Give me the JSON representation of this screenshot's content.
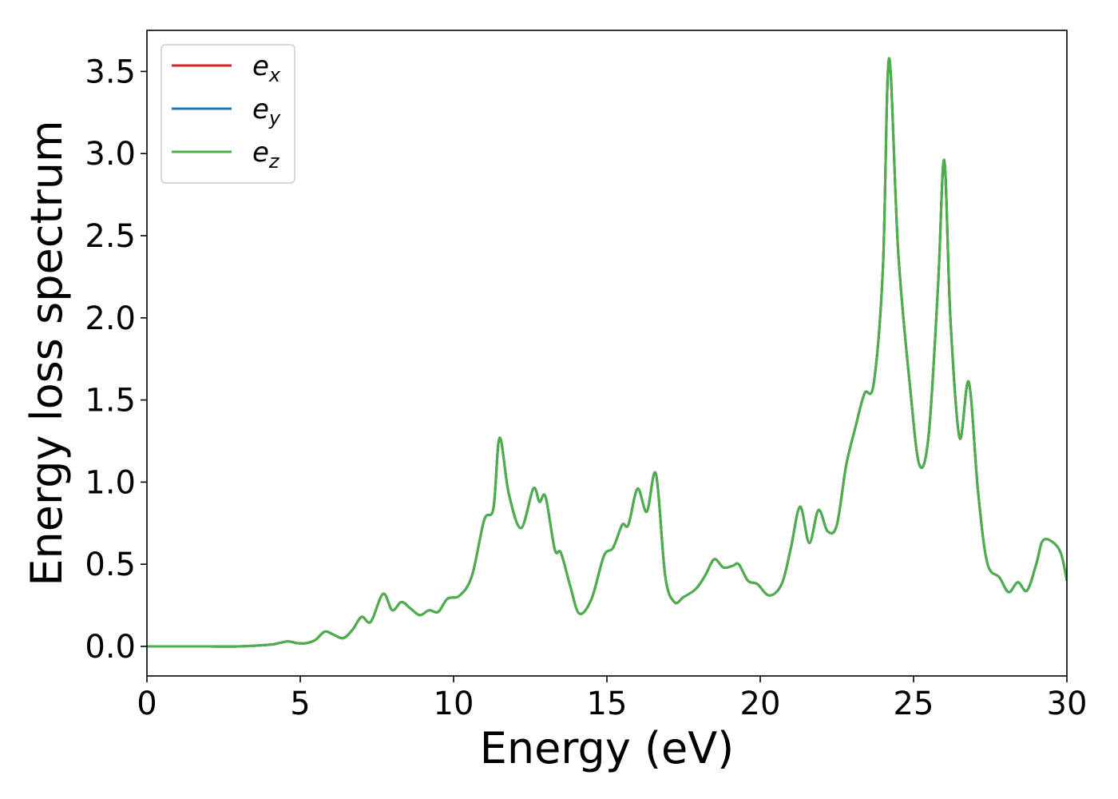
{
  "chart_data": {
    "type": "line",
    "xlabel": "Energy (eV)",
    "ylabel": "Energy loss spectrum",
    "xlim": [
      0,
      30
    ],
    "ylim": [
      -0.18,
      3.75
    ],
    "xticks": [
      0,
      5,
      10,
      15,
      20,
      25,
      30
    ],
    "xtick_labels": [
      "0",
      "5",
      "10",
      "15",
      "20",
      "25",
      "30"
    ],
    "yticks": [
      0.0,
      0.5,
      1.0,
      1.5,
      2.0,
      2.5,
      3.0,
      3.5
    ],
    "ytick_labels": [
      "0.0",
      "0.5",
      "1.0",
      "1.5",
      "2.0",
      "2.5",
      "3.0",
      "3.5"
    ],
    "grid": false,
    "legend_position": "top-left",
    "legend": [
      {
        "base": "e",
        "sub": "x",
        "color": "#d62728"
      },
      {
        "base": "e",
        "sub": "y",
        "color": "#1f77b4"
      },
      {
        "base": "e",
        "sub": "z",
        "color": "#4daf4a"
      }
    ],
    "x": [
      0,
      1,
      2,
      3,
      4,
      4.3,
      4.6,
      4.9,
      5.2,
      5.5,
      5.8,
      6.1,
      6.4,
      6.7,
      7.0,
      7.3,
      7.7,
      8.0,
      8.3,
      8.6,
      8.9,
      9.2,
      9.5,
      9.8,
      10.2,
      10.6,
      11.0,
      11.3,
      11.5,
      11.8,
      12.2,
      12.6,
      12.8,
      13.0,
      13.3,
      13.5,
      13.8,
      14.1,
      14.5,
      14.9,
      15.2,
      15.5,
      15.7,
      16.0,
      16.3,
      16.6,
      16.9,
      17.2,
      17.5,
      17.9,
      18.2,
      18.5,
      18.8,
      19.1,
      19.3,
      19.6,
      19.9,
      20.3,
      20.7,
      21.0,
      21.3,
      21.6,
      21.9,
      22.2,
      22.5,
      22.8,
      23.1,
      23.4,
      23.7,
      24.0,
      24.2,
      24.5,
      24.9,
      25.2,
      25.5,
      25.8,
      26.0,
      26.2,
      26.5,
      26.8,
      27.1,
      27.4,
      27.8,
      28.1,
      28.4,
      28.7,
      29.0,
      29.2,
      29.5,
      29.8,
      30.0
    ],
    "series": [
      {
        "name": "e_x",
        "color": "#d62728",
        "values": [
          0.0,
          0.0,
          0.0,
          0.0,
          0.01,
          0.02,
          0.03,
          0.02,
          0.02,
          0.04,
          0.09,
          0.07,
          0.05,
          0.1,
          0.18,
          0.15,
          0.32,
          0.22,
          0.27,
          0.23,
          0.19,
          0.22,
          0.21,
          0.29,
          0.31,
          0.43,
          0.77,
          0.84,
          1.27,
          0.93,
          0.72,
          0.96,
          0.88,
          0.91,
          0.59,
          0.57,
          0.37,
          0.2,
          0.29,
          0.55,
          0.6,
          0.74,
          0.74,
          0.96,
          0.82,
          1.05,
          0.43,
          0.27,
          0.3,
          0.35,
          0.43,
          0.53,
          0.48,
          0.49,
          0.5,
          0.4,
          0.38,
          0.31,
          0.38,
          0.6,
          0.85,
          0.63,
          0.83,
          0.7,
          0.74,
          1.1,
          1.33,
          1.54,
          1.6,
          2.3,
          3.58,
          2.4,
          1.55,
          1.1,
          1.3,
          2.2,
          2.96,
          2.0,
          1.27,
          1.61,
          0.95,
          0.51,
          0.42,
          0.33,
          0.39,
          0.34,
          0.5,
          0.64,
          0.64,
          0.57,
          0.4
        ]
      },
      {
        "name": "e_y",
        "color": "#1f77b4",
        "values": [
          0.0,
          0.0,
          0.0,
          0.0,
          0.01,
          0.02,
          0.03,
          0.02,
          0.02,
          0.04,
          0.09,
          0.07,
          0.05,
          0.1,
          0.18,
          0.15,
          0.32,
          0.22,
          0.27,
          0.23,
          0.19,
          0.22,
          0.21,
          0.29,
          0.31,
          0.43,
          0.77,
          0.84,
          1.27,
          0.93,
          0.72,
          0.96,
          0.88,
          0.91,
          0.59,
          0.57,
          0.37,
          0.2,
          0.29,
          0.55,
          0.6,
          0.74,
          0.74,
          0.96,
          0.82,
          1.05,
          0.43,
          0.27,
          0.3,
          0.35,
          0.43,
          0.53,
          0.48,
          0.49,
          0.5,
          0.4,
          0.38,
          0.31,
          0.38,
          0.6,
          0.85,
          0.63,
          0.83,
          0.7,
          0.74,
          1.1,
          1.33,
          1.54,
          1.6,
          2.3,
          3.58,
          2.4,
          1.55,
          1.1,
          1.3,
          2.2,
          2.96,
          2.0,
          1.27,
          1.61,
          0.95,
          0.51,
          0.42,
          0.33,
          0.39,
          0.34,
          0.5,
          0.64,
          0.64,
          0.57,
          0.4
        ]
      },
      {
        "name": "e_z",
        "color": "#4daf4a",
        "values": [
          0.0,
          0.0,
          0.0,
          0.0,
          0.01,
          0.02,
          0.03,
          0.02,
          0.02,
          0.04,
          0.09,
          0.07,
          0.05,
          0.1,
          0.18,
          0.15,
          0.32,
          0.22,
          0.27,
          0.23,
          0.19,
          0.22,
          0.21,
          0.29,
          0.31,
          0.43,
          0.77,
          0.84,
          1.27,
          0.93,
          0.72,
          0.96,
          0.88,
          0.91,
          0.59,
          0.57,
          0.37,
          0.2,
          0.29,
          0.55,
          0.6,
          0.74,
          0.74,
          0.96,
          0.82,
          1.05,
          0.43,
          0.27,
          0.3,
          0.35,
          0.43,
          0.53,
          0.48,
          0.49,
          0.5,
          0.4,
          0.38,
          0.31,
          0.38,
          0.6,
          0.85,
          0.63,
          0.83,
          0.7,
          0.74,
          1.1,
          1.33,
          1.54,
          1.6,
          2.3,
          3.58,
          2.4,
          1.55,
          1.1,
          1.3,
          2.2,
          2.96,
          2.0,
          1.27,
          1.61,
          0.95,
          0.51,
          0.42,
          0.33,
          0.39,
          0.34,
          0.5,
          0.64,
          0.64,
          0.57,
          0.4
        ]
      }
    ]
  }
}
